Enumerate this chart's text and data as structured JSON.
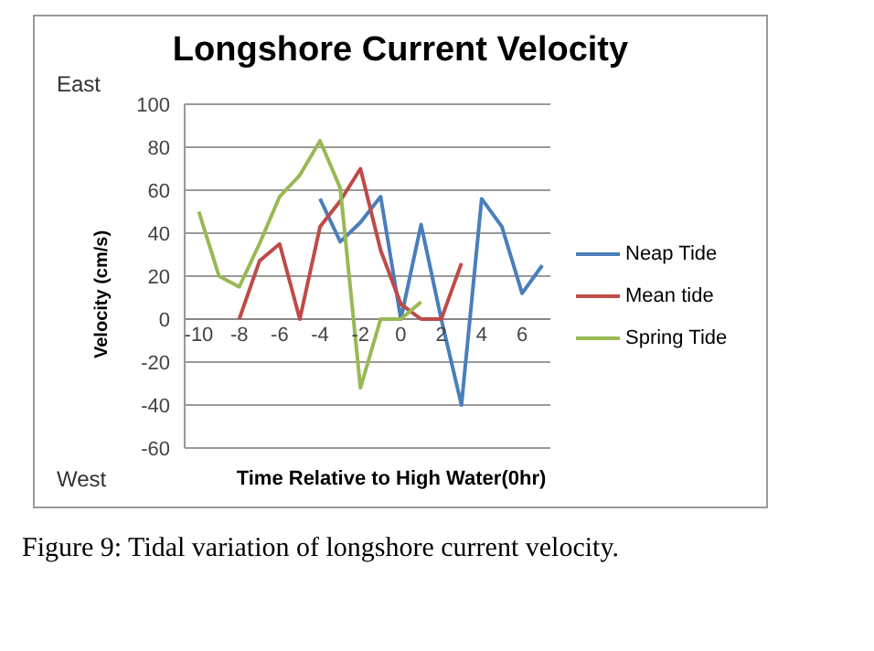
{
  "chart_data": {
    "type": "line",
    "title": "Longshore Current Velocity",
    "xlabel": "Time Relative to  High Water(0hr)",
    "ylabel": "Velocity (cm/s)",
    "annotations": [
      "East",
      "West",
      "Figure 9: Tidal variation of longshore current velocity."
    ],
    "x": [
      -10,
      -9,
      -8,
      -7,
      -6,
      -5,
      -4,
      -3,
      -2,
      -1,
      0,
      1,
      2,
      3,
      4,
      5,
      6,
      7
    ],
    "series": [
      {
        "name": "Neap Tide",
        "color": "#4a7ebb",
        "values": [
          null,
          null,
          null,
          null,
          null,
          null,
          56,
          36,
          45,
          57,
          0,
          44,
          0,
          -40,
          56,
          43,
          12,
          25
        ]
      },
      {
        "name": "Mean tide",
        "color": "#be4b48",
        "values": [
          null,
          null,
          0,
          27,
          35,
          0,
          43,
          55,
          70,
          32,
          7,
          0,
          0,
          26,
          null,
          null,
          null,
          null
        ]
      },
      {
        "name": "Spring Tide",
        "color": "#98b954",
        "values": [
          50,
          20,
          15,
          35,
          57,
          67,
          83,
          61,
          -32,
          0,
          0,
          8,
          null,
          null,
          null,
          null,
          null,
          null
        ]
      }
    ],
    "xlim": [
      -10.7,
      7.4
    ],
    "xticks": [
      -10,
      -8,
      -6,
      -4,
      -2,
      0,
      2,
      4,
      6
    ],
    "ylim": [
      -60,
      100
    ],
    "yticks": [
      -60,
      -40,
      -20,
      0,
      20,
      40,
      60,
      80,
      100
    ],
    "grid": "y",
    "legend": "right",
    "marker": "none",
    "line_style": "solid"
  }
}
